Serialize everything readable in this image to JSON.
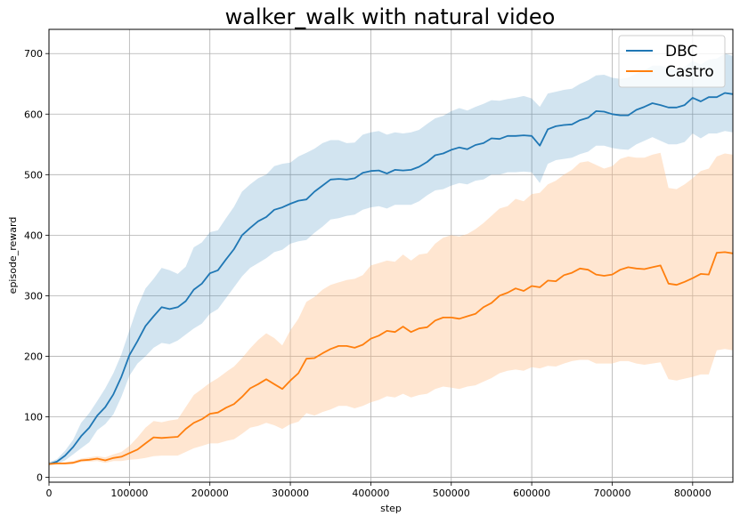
{
  "chart_data": {
    "type": "line",
    "title": "walker_walk with natural video",
    "xlabel": "step",
    "ylabel": "episode_reward",
    "xlim": [
      0,
      850000
    ],
    "ylim": [
      -8,
      740
    ],
    "xticks": [
      0,
      100000,
      200000,
      300000,
      400000,
      500000,
      600000,
      700000,
      800000
    ],
    "yticks": [
      0,
      100,
      200,
      300,
      400,
      500,
      600,
      700
    ],
    "grid": true,
    "legend_position": "top-right",
    "series": [
      {
        "name": "DBC",
        "color": "#1f77b4",
        "band_color": "#1f77b4",
        "x": [
          0,
          10000,
          20000,
          30000,
          40000,
          50000,
          60000,
          70000,
          80000,
          90000,
          100000,
          110000,
          120000,
          130000,
          140000,
          150000,
          160000,
          170000,
          180000,
          190000,
          200000,
          210000,
          220000,
          230000,
          240000,
          250000,
          260000,
          270000,
          280000,
          290000,
          300000,
          310000,
          320000,
          330000,
          340000,
          350000,
          360000,
          370000,
          380000,
          390000,
          400000,
          410000,
          420000,
          430000,
          440000,
          450000,
          460000,
          470000,
          480000,
          490000,
          500000,
          510000,
          520000,
          530000,
          540000,
          550000,
          560000,
          570000,
          580000,
          590000,
          600000,
          610000,
          620000,
          630000,
          640000,
          650000,
          660000,
          670000,
          680000,
          690000,
          700000,
          710000,
          720000,
          730000,
          740000,
          750000,
          760000,
          770000,
          780000,
          790000,
          800000,
          810000,
          820000,
          830000,
          840000,
          850000
        ],
        "values": [
          22,
          26,
          36,
          50,
          68,
          82,
          102,
          116,
          137,
          166,
          202,
          225,
          250,
          266,
          281,
          278,
          281,
          291,
          310,
          320,
          337,
          342,
          360,
          377,
          400,
          412,
          423,
          430,
          442,
          446,
          452,
          457,
          459,
          472,
          482,
          492,
          493,
          492,
          494,
          503,
          506,
          507,
          502,
          508,
          507,
          508,
          513,
          521,
          532,
          535,
          541,
          545,
          542,
          549,
          552,
          560,
          559,
          564,
          564,
          565,
          564,
          548,
          575,
          580,
          582,
          583,
          590,
          594,
          605,
          604,
          600,
          598,
          598,
          607,
          612,
          618,
          615,
          611,
          611,
          615,
          627,
          621,
          628,
          628,
          635,
          633
        ],
        "upper": [
          25,
          30,
          44,
          62,
          90,
          106,
          126,
          147,
          172,
          203,
          243,
          282,
          312,
          328,
          346,
          342,
          336,
          348,
          380,
          388,
          405,
          408,
          428,
          447,
          472,
          484,
          494,
          500,
          514,
          518,
          520,
          530,
          536,
          543,
          552,
          557,
          557,
          552,
          553,
          566,
          570,
          572,
          566,
          570,
          568,
          570,
          574,
          584,
          593,
          597,
          605,
          610,
          606,
          612,
          617,
          623,
          622,
          625,
          627,
          630,
          626,
          612,
          634,
          637,
          640,
          642,
          650,
          656,
          664,
          665,
          660,
          658,
          660,
          667,
          672,
          680,
          680,
          676,
          674,
          678,
          688,
          682,
          690,
          692,
          700,
          696
        ],
        "lower": [
          20,
          22,
          28,
          38,
          48,
          58,
          78,
          88,
          104,
          133,
          168,
          188,
          200,
          214,
          222,
          220,
          226,
          236,
          246,
          254,
          270,
          278,
          296,
          314,
          332,
          346,
          354,
          362,
          372,
          376,
          386,
          390,
          392,
          404,
          414,
          426,
          428,
          432,
          434,
          442,
          446,
          448,
          444,
          450,
          450,
          450,
          456,
          466,
          474,
          476,
          482,
          486,
          484,
          490,
          492,
          500,
          500,
          504,
          504,
          505,
          504,
          486,
          518,
          524,
          526,
          528,
          534,
          538,
          548,
          548,
          544,
          542,
          541,
          550,
          556,
          562,
          556,
          550,
          550,
          554,
          568,
          560,
          568,
          568,
          572,
          570
        ]
      },
      {
        "name": "Castro",
        "color": "#ff7f0e",
        "band_color": "#ffbe86",
        "x": [
          0,
          10000,
          20000,
          30000,
          40000,
          50000,
          60000,
          70000,
          80000,
          90000,
          100000,
          110000,
          120000,
          130000,
          140000,
          150000,
          160000,
          170000,
          180000,
          190000,
          200000,
          210000,
          220000,
          230000,
          240000,
          250000,
          260000,
          270000,
          280000,
          290000,
          300000,
          310000,
          320000,
          330000,
          340000,
          350000,
          360000,
          370000,
          380000,
          390000,
          400000,
          410000,
          420000,
          430000,
          440000,
          450000,
          460000,
          470000,
          480000,
          490000,
          500000,
          510000,
          520000,
          530000,
          540000,
          550000,
          560000,
          570000,
          580000,
          590000,
          600000,
          610000,
          620000,
          630000,
          640000,
          650000,
          660000,
          670000,
          680000,
          690000,
          700000,
          710000,
          720000,
          730000,
          740000,
          750000,
          760000,
          770000,
          780000,
          790000,
          800000,
          810000,
          820000,
          830000,
          840000,
          850000
        ],
        "values": [
          22,
          23,
          23,
          24,
          28,
          29,
          31,
          28,
          32,
          34,
          40,
          46,
          56,
          66,
          65,
          66,
          67,
          80,
          90,
          96,
          105,
          107,
          115,
          121,
          133,
          147,
          154,
          162,
          154,
          146,
          160,
          172,
          196,
          197,
          205,
          212,
          217,
          217,
          214,
          219,
          229,
          234,
          242,
          240,
          249,
          240,
          246,
          248,
          259,
          264,
          264,
          262,
          266,
          270,
          281,
          288,
          300,
          305,
          312,
          308,
          316,
          314,
          325,
          324,
          334,
          338,
          345,
          343,
          335,
          333,
          335,
          343,
          347,
          345,
          344,
          347,
          350,
          320,
          318,
          323,
          329,
          336,
          335,
          371,
          372,
          370
        ],
        "upper": [
          24,
          24,
          25,
          27,
          31,
          33,
          35,
          33,
          38,
          42,
          52,
          66,
          82,
          93,
          91,
          94,
          96,
          116,
          136,
          146,
          156,
          164,
          174,
          183,
          197,
          213,
          227,
          238,
          230,
          218,
          243,
          262,
          290,
          298,
          310,
          318,
          322,
          326,
          328,
          334,
          350,
          354,
          358,
          356,
          368,
          358,
          368,
          370,
          386,
          396,
          400,
          398,
          402,
          410,
          420,
          432,
          444,
          448,
          460,
          456,
          468,
          470,
          484,
          490,
          500,
          508,
          520,
          522,
          516,
          510,
          514,
          526,
          530,
          528,
          528,
          533,
          536,
          478,
          476,
          484,
          494,
          506,
          510,
          530,
          535,
          533
        ],
        "lower": [
          20,
          21,
          21,
          22,
          25,
          26,
          27,
          24,
          27,
          27,
          29,
          30,
          32,
          35,
          36,
          36,
          36,
          42,
          48,
          52,
          56,
          56,
          60,
          63,
          72,
          82,
          85,
          90,
          86,
          80,
          88,
          92,
          106,
          102,
          108,
          112,
          118,
          118,
          114,
          118,
          124,
          128,
          134,
          132,
          138,
          132,
          136,
          138,
          146,
          150,
          148,
          146,
          150,
          152,
          158,
          164,
          172,
          176,
          178,
          176,
          182,
          180,
          184,
          183,
          188,
          192,
          194,
          194,
          188,
          188,
          188,
          192,
          192,
          188,
          186,
          188,
          190,
          162,
          160,
          163,
          166,
          170,
          170,
          210,
          212,
          210
        ]
      }
    ]
  }
}
